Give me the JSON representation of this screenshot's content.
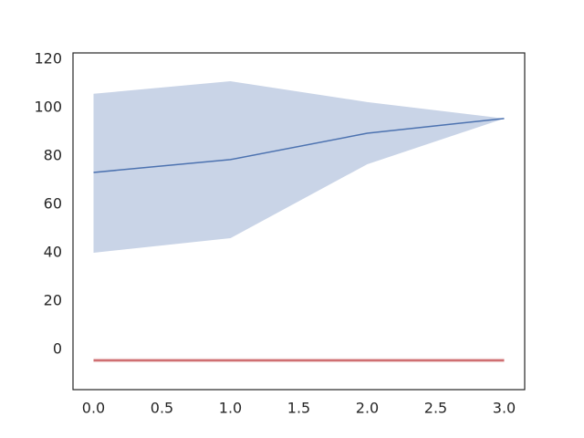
{
  "chart_data": {
    "type": "line",
    "x": [
      0,
      1,
      2,
      3
    ],
    "series": [
      {
        "color": "#4c72b0",
        "values": [
          73.2,
          78.5,
          89.4,
          95.5
        ],
        "lower": [
          40,
          46,
          76.6,
          95.5
        ],
        "upper": [
          105.7,
          110.9,
          102.3,
          95.5
        ]
      },
      {
        "color": "#c44e52",
        "values": [
          -4.5,
          -4.5,
          -4.5,
          -4.5
        ],
        "lower": [
          -5.3,
          -5.3,
          -5.3,
          -5.3
        ],
        "upper": [
          -3.7,
          -3.7,
          -3.7,
          -3.7
        ]
      }
    ],
    "xlim": [
      -0.15,
      3.15
    ],
    "ylim": [
      -16.6,
      122.6
    ],
    "xticks": [
      {
        "value": 0,
        "label": "0.0"
      },
      {
        "value": 0.5,
        "label": "0.5"
      },
      {
        "value": 1,
        "label": "1.0"
      },
      {
        "value": 1.5,
        "label": "1.5"
      },
      {
        "value": 2,
        "label": "2.0"
      },
      {
        "value": 2.5,
        "label": "2.5"
      },
      {
        "value": 3,
        "label": "3.0"
      }
    ],
    "yticks": [
      0,
      20,
      40,
      60,
      80,
      100,
      120
    ],
    "grid": false
  }
}
